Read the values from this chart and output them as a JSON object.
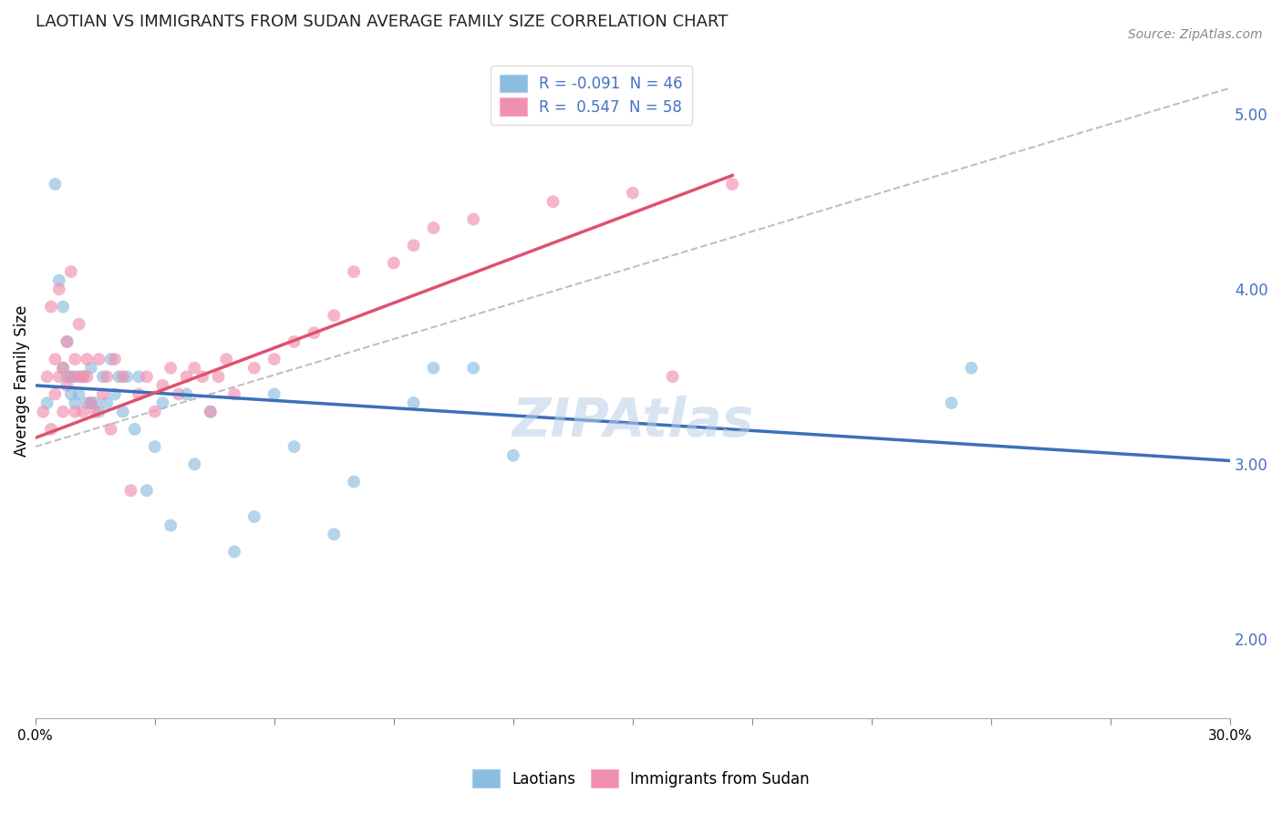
{
  "title": "LAOTIAN VS IMMIGRANTS FROM SUDAN AVERAGE FAMILY SIZE CORRELATION CHART",
  "source": "Source: ZipAtlas.com",
  "ylabel": "Average Family Size",
  "yticks": [
    2.0,
    3.0,
    4.0,
    5.0
  ],
  "xlim": [
    0.0,
    0.3
  ],
  "ylim": [
    1.55,
    5.4
  ],
  "legend_blue_label": "R = -0.091  N = 46",
  "legend_pink_label": "R =  0.547  N = 58",
  "watermark": "ZIPAtlas",
  "blue_color": "#8bbde0",
  "pink_color": "#f090b0",
  "blue_line_color": "#3b6fba",
  "pink_line_color": "#e05070",
  "dashed_line_color": "#c0c0c0",
  "blue_scatter_x": [
    0.003,
    0.005,
    0.006,
    0.007,
    0.007,
    0.008,
    0.008,
    0.009,
    0.009,
    0.01,
    0.01,
    0.011,
    0.012,
    0.013,
    0.014,
    0.014,
    0.015,
    0.016,
    0.017,
    0.018,
    0.019,
    0.02,
    0.021,
    0.022,
    0.023,
    0.025,
    0.026,
    0.028,
    0.03,
    0.032,
    0.034,
    0.038,
    0.04,
    0.044,
    0.05,
    0.055,
    0.06,
    0.065,
    0.075,
    0.08,
    0.095,
    0.1,
    0.11,
    0.12,
    0.23,
    0.235
  ],
  "blue_scatter_y": [
    3.35,
    4.6,
    4.05,
    3.55,
    3.9,
    3.5,
    3.7,
    3.4,
    3.5,
    3.35,
    3.5,
    3.4,
    3.5,
    3.35,
    3.55,
    3.35,
    3.35,
    3.3,
    3.5,
    3.35,
    3.6,
    3.4,
    3.5,
    3.3,
    3.5,
    3.2,
    3.5,
    2.85,
    3.1,
    3.35,
    2.65,
    3.4,
    3.0,
    3.3,
    2.5,
    2.7,
    3.4,
    3.1,
    2.6,
    2.9,
    3.35,
    3.55,
    3.55,
    3.05,
    3.35,
    3.55
  ],
  "pink_scatter_x": [
    0.002,
    0.003,
    0.004,
    0.004,
    0.005,
    0.005,
    0.006,
    0.006,
    0.007,
    0.007,
    0.008,
    0.008,
    0.009,
    0.009,
    0.01,
    0.01,
    0.011,
    0.011,
    0.012,
    0.012,
    0.013,
    0.013,
    0.014,
    0.015,
    0.016,
    0.017,
    0.018,
    0.019,
    0.02,
    0.022,
    0.024,
    0.026,
    0.028,
    0.03,
    0.032,
    0.034,
    0.036,
    0.038,
    0.04,
    0.042,
    0.044,
    0.046,
    0.048,
    0.05,
    0.055,
    0.06,
    0.065,
    0.07,
    0.075,
    0.08,
    0.09,
    0.095,
    0.1,
    0.11,
    0.13,
    0.15,
    0.16,
    0.175
  ],
  "pink_scatter_y": [
    3.3,
    3.5,
    3.2,
    3.9,
    3.4,
    3.6,
    3.5,
    4.0,
    3.3,
    3.55,
    3.45,
    3.7,
    3.5,
    4.1,
    3.6,
    3.3,
    3.5,
    3.8,
    3.5,
    3.3,
    3.5,
    3.6,
    3.35,
    3.3,
    3.6,
    3.4,
    3.5,
    3.2,
    3.6,
    3.5,
    2.85,
    3.4,
    3.5,
    3.3,
    3.45,
    3.55,
    3.4,
    3.5,
    3.55,
    3.5,
    3.3,
    3.5,
    3.6,
    3.4,
    3.55,
    3.6,
    3.7,
    3.75,
    3.85,
    4.1,
    4.15,
    4.25,
    4.35,
    4.4,
    4.5,
    4.55,
    3.5,
    4.6
  ],
  "blue_trend_x": [
    0.0,
    0.3
  ],
  "blue_trend_y": [
    3.45,
    3.02
  ],
  "pink_trend_x": [
    0.0,
    0.175
  ],
  "pink_trend_y": [
    3.15,
    4.65
  ],
  "dashed_trend_x": [
    0.0,
    0.3
  ],
  "dashed_trend_y": [
    3.1,
    5.15
  ]
}
